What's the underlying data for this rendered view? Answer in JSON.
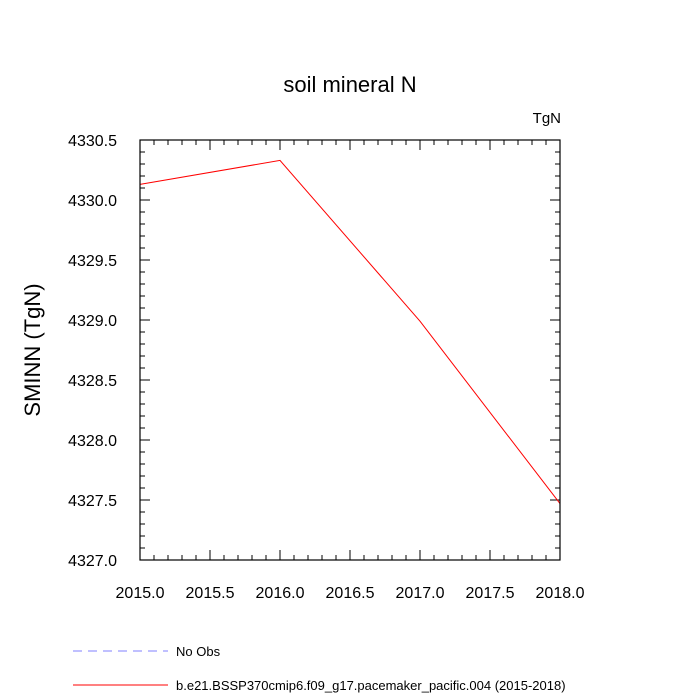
{
  "chart_data": {
    "type": "line",
    "title": "soil mineral N",
    "units_label": "TgN",
    "xlabel": "",
    "ylabel": "SMINN  (TgN)",
    "xlim": [
      2015.0,
      2018.0
    ],
    "ylim": [
      4327.0,
      4330.5
    ],
    "x_ticks": [
      2015.0,
      2015.5,
      2016.0,
      2016.5,
      2017.0,
      2017.5,
      2018.0
    ],
    "x_tick_labels": [
      "2015.0",
      "2015.5",
      "2016.0",
      "2016.5",
      "2017.0",
      "2017.5",
      "2018.0"
    ],
    "y_ticks": [
      4327.0,
      4327.5,
      4328.0,
      4328.5,
      4329.0,
      4329.5,
      4330.0,
      4330.5
    ],
    "y_tick_labels": [
      "4327.0",
      "4327.5",
      "4328.0",
      "4328.5",
      "4329.0",
      "4329.5",
      "4330.0",
      "4330.5"
    ],
    "x_minor_step": 0.1,
    "y_minor_step": 0.1,
    "grid": false,
    "legend_position": "bottom-left",
    "series": [
      {
        "name": "b.e21.BSSP370cmip6.f09_g17.pacemaker_pacific.004 (2015-2018)",
        "color": "#ff0000",
        "dash": "solid",
        "x": [
          2015.0,
          2016.0,
          2017.0,
          2018.0
        ],
        "values": [
          4330.13,
          4330.33,
          4328.99,
          4327.47
        ]
      }
    ],
    "legend": [
      {
        "label": "No Obs",
        "color": "#8080ff",
        "dash": "dashed"
      },
      {
        "label": "b.e21.BSSP370cmip6.f09_g17.pacemaker_pacific.004 (2015-2018)",
        "color": "#ff0000",
        "dash": "solid"
      }
    ]
  }
}
